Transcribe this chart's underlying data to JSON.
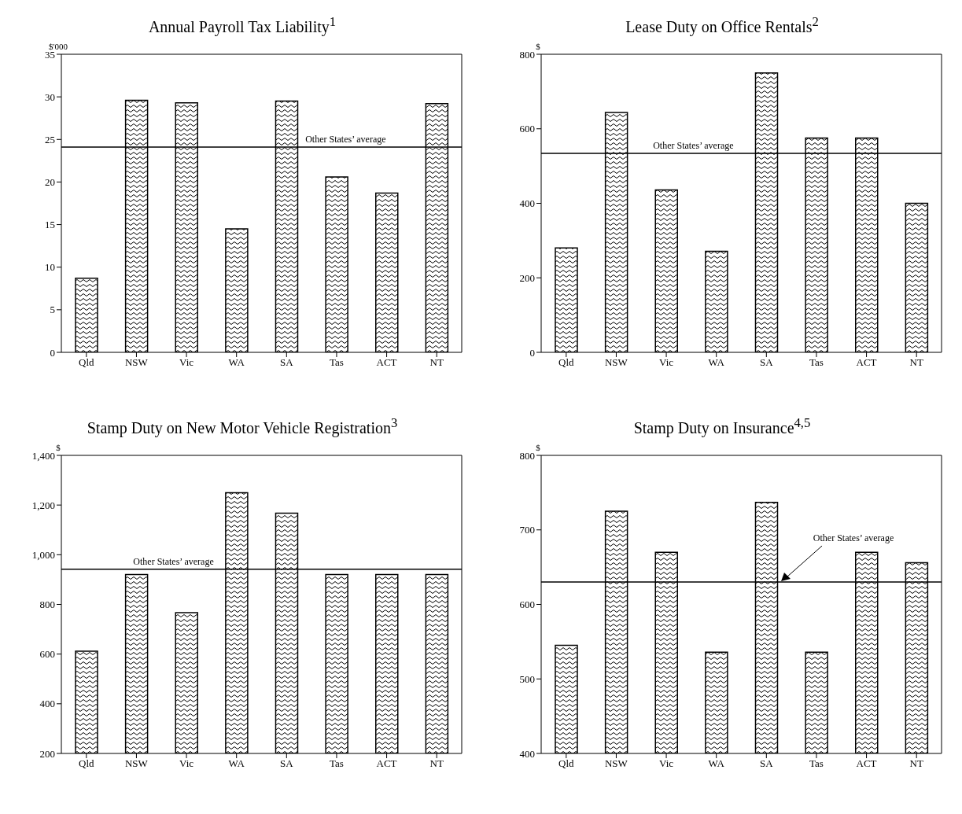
{
  "chart_data": [
    {
      "type": "bar",
      "title": "Annual Payroll Tax Liability$^{1}$",
      "ylabel": "$'000",
      "categories": [
        "Qld",
        "NSW",
        "Vic",
        "WA",
        "SA",
        "Tas",
        "ACT",
        "NT"
      ],
      "values": [
        8.7,
        29.6,
        29.3,
        14.5,
        29.5,
        20.6,
        18.7,
        29.2
      ],
      "color": "#000000",
      "ylim": [
        0,
        35
      ],
      "yticks": [
        0,
        5,
        10,
        15,
        20,
        25,
        30,
        35
      ],
      "grid": false,
      "legend": false,
      "ref_lines": [
        {
          "axis": "y",
          "value": 24.1,
          "label": "Other States’ average"
        }
      ]
    },
    {
      "type": "bar",
      "title": "Lease Duty on Office Rentals$^{2}$",
      "ylabel": "$",
      "categories": [
        "Qld",
        "NSW",
        "Vic",
        "WA",
        "SA",
        "Tas",
        "ACT",
        "NT"
      ],
      "values": [
        280,
        644,
        436,
        271,
        750,
        575,
        575,
        400
      ],
      "color": "#000000",
      "ylim": [
        0,
        800
      ],
      "yticks": [
        0,
        200,
        400,
        600,
        800
      ],
      "grid": false,
      "legend": false,
      "ref_lines": [
        {
          "axis": "y",
          "value": 534,
          "label": "Other States’ average"
        }
      ]
    },
    {
      "type": "bar",
      "title": "Stamp Duty on New Motor Vehicle Registration$^{3}$",
      "ylabel": "$",
      "categories": [
        "Qld",
        "NSW",
        "Vic",
        "WA",
        "SA",
        "Tas",
        "ACT",
        "NT"
      ],
      "values": [
        612,
        920,
        767,
        1250,
        1167,
        920,
        920,
        920
      ],
      "color": "#000000",
      "ylim": [
        200,
        1400
      ],
      "yticks": [
        200,
        400,
        600,
        800,
        {
          "value": 1000,
          "label": "1,000"
        },
        {
          "value": 1200,
          "label": "1,200"
        },
        {
          "value": 1400,
          "label": "1,400"
        }
      ],
      "grid": false,
      "legend": false,
      "ref_lines": [
        {
          "axis": "y",
          "value": 942,
          "label": "Other States’ average"
        }
      ]
    },
    {
      "type": "bar",
      "title": "Stamp Duty on Insurance$^{4,5}$",
      "ylabel": "$",
      "categories": [
        "Qld",
        "NSW",
        "Vic",
        "WA",
        "SA",
        "Tas",
        "ACT",
        "NT"
      ],
      "values": [
        545,
        725,
        670,
        536,
        737,
        536,
        670,
        656
      ],
      "color": "#000000",
      "ylim": [
        400,
        800
      ],
      "yticks": [
        400,
        500,
        600,
        700,
        800
      ],
      "grid": false,
      "legend": false,
      "ref_lines": [
        {
          "axis": "y",
          "value": 630,
          "label": "Other States’ average"
        }
      ]
    }
  ]
}
